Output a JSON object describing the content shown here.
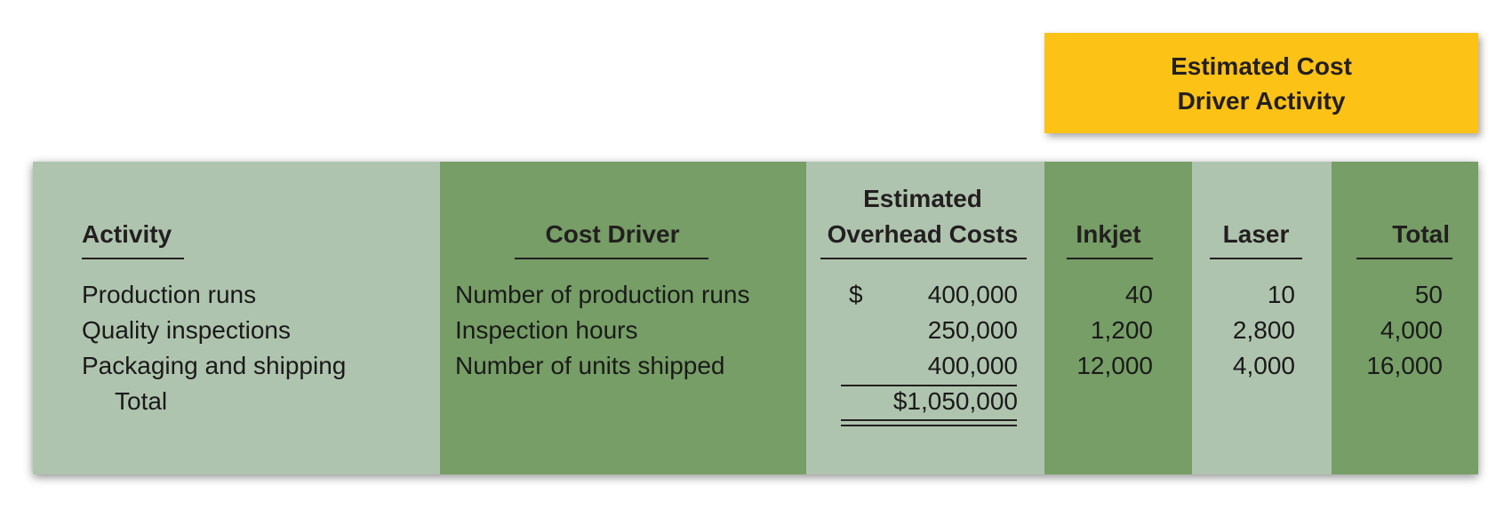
{
  "banner": {
    "line1": "Estimated Cost",
    "line2": "Driver Activity"
  },
  "headers": {
    "activity": "Activity",
    "cost_driver": "Cost Driver",
    "estimated_line1": "Estimated",
    "estimated_line2": "Overhead Costs",
    "inkjet": "Inkjet",
    "laser": "Laser",
    "total": "Total"
  },
  "rows": [
    {
      "activity": "Production runs",
      "driver": "Number of production runs",
      "currency": "$",
      "cost": "400,000",
      "inkjet": "40",
      "laser": "10",
      "total": "50"
    },
    {
      "activity": "Quality inspections",
      "driver": "Inspection hours",
      "currency": "",
      "cost": "250,000",
      "inkjet": "1,200",
      "laser": "2,800",
      "total": "4,000"
    },
    {
      "activity": "Packaging and shipping",
      "driver": "Number of units shipped",
      "currency": "",
      "cost": "400,000",
      "inkjet": "12,000",
      "laser": "4,000",
      "total": "16,000"
    }
  ],
  "total_row": {
    "label": "Total",
    "cost": "$1,050,000"
  },
  "colors": {
    "light_column": "#afc4ae",
    "dark_column": "#769e66",
    "banner": "#fcc216"
  }
}
